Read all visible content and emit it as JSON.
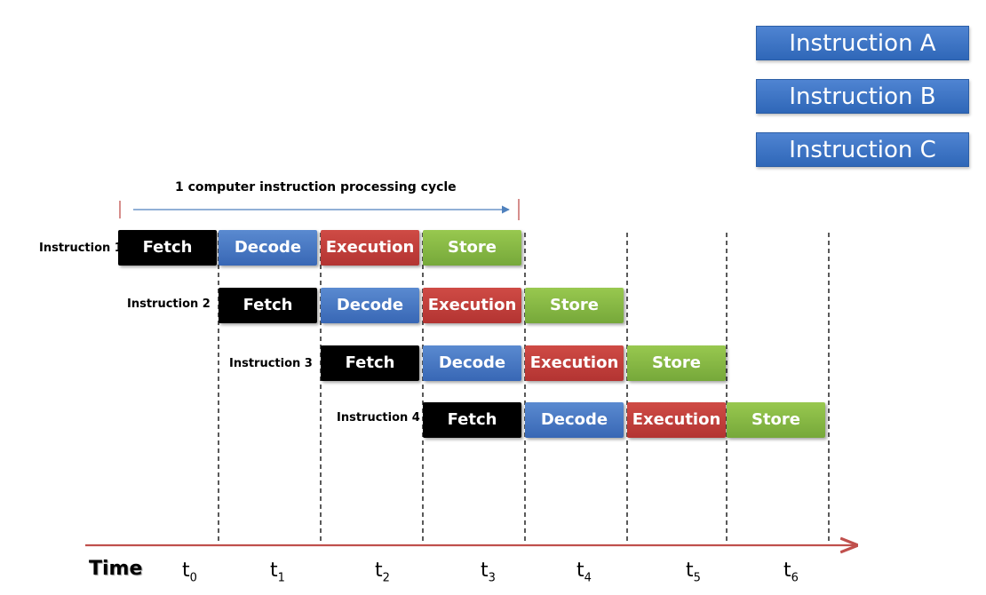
{
  "legend": [
    {
      "label": "Instruction A"
    },
    {
      "label": "Instruction B"
    },
    {
      "label": "Instruction C"
    }
  ],
  "cycle": {
    "label": "1 computer instruction processing cycle"
  },
  "rows": [
    {
      "label": "Instruction 1",
      "stages": [
        {
          "name": "Fetch",
          "kind": "fetch",
          "slot": 0
        },
        {
          "name": "Decode",
          "kind": "decode",
          "slot": 1
        },
        {
          "name": "Execution",
          "kind": "execution",
          "slot": 2
        },
        {
          "name": "Store",
          "kind": "store",
          "slot": 3
        }
      ]
    },
    {
      "label": "Instruction 2",
      "stages": [
        {
          "name": "Fetch",
          "kind": "fetch",
          "slot": 1
        },
        {
          "name": "Decode",
          "kind": "decode",
          "slot": 2
        },
        {
          "name": "Execution",
          "kind": "execution",
          "slot": 3
        },
        {
          "name": "Store",
          "kind": "store",
          "slot": 4
        }
      ]
    },
    {
      "label": "Instruction 3",
      "stages": [
        {
          "name": "Fetch",
          "kind": "fetch",
          "slot": 2
        },
        {
          "name": "Decode",
          "kind": "decode",
          "slot": 3
        },
        {
          "name": "Execution",
          "kind": "execution",
          "slot": 4
        },
        {
          "name": "Store",
          "kind": "store",
          "slot": 5
        }
      ]
    },
    {
      "label": "Instruction 4",
      "stages": [
        {
          "name": "Fetch",
          "kind": "fetch",
          "slot": 3
        },
        {
          "name": "Decode",
          "kind": "decode",
          "slot": 4
        },
        {
          "name": "Execution",
          "kind": "execution",
          "slot": 5
        },
        {
          "name": "Store",
          "kind": "store",
          "slot": 6
        }
      ]
    }
  ],
  "time_axis": {
    "label": "Time",
    "ticks": [
      {
        "base": "t",
        "sub": "0"
      },
      {
        "base": "t",
        "sub": "1"
      },
      {
        "base": "t",
        "sub": "2"
      },
      {
        "base": "t",
        "sub": "3"
      },
      {
        "base": "t",
        "sub": "4"
      },
      {
        "base": "t",
        "sub": "5"
      },
      {
        "base": "t",
        "sub": "6"
      }
    ]
  },
  "colors": {
    "fetch": "#000000",
    "decode": "#4a7bc4",
    "execution": "#c0403c",
    "store": "#86b846",
    "axis": "#c0504d",
    "cycle_arrow": "#4f81bd",
    "legend": "#3e74c4"
  }
}
